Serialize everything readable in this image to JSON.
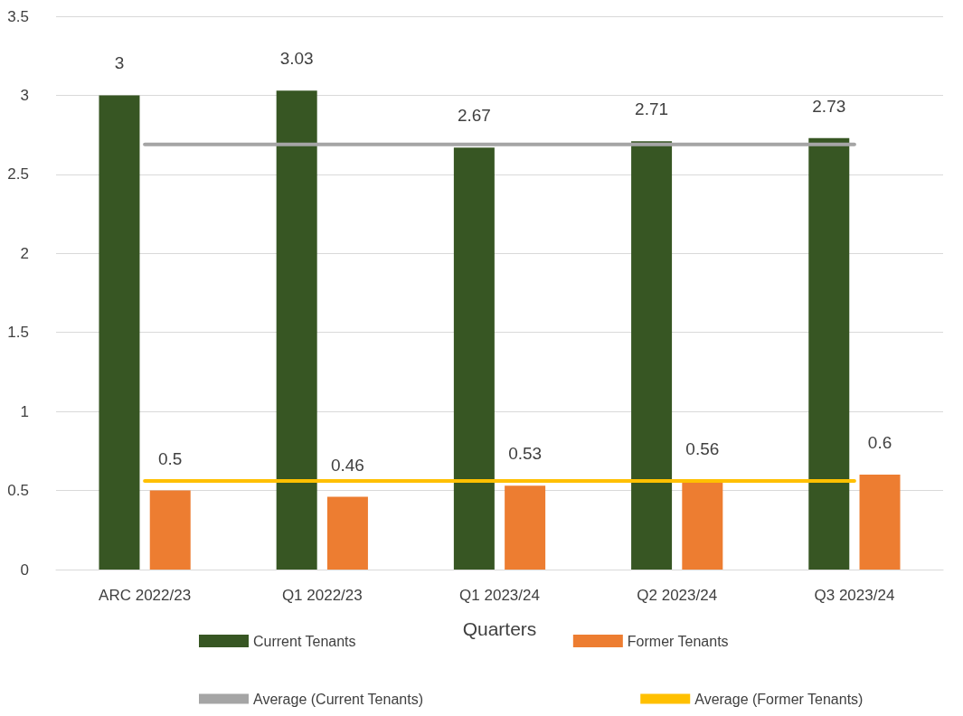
{
  "chart_data": {
    "type": "bar",
    "xlabel": "Quarters",
    "categories": [
      "ARC 2022/23",
      "Q1 2022/23",
      "Q1 2023/24",
      "Q2 2023/24",
      "Q3 2023/24"
    ],
    "series": [
      {
        "name": "Current Tenants",
        "color": "#375623",
        "values": [
          3,
          3.03,
          2.67,
          2.71,
          2.73
        ],
        "value_labels": [
          "3",
          "3.03",
          "2.67",
          "2.71",
          "2.73"
        ]
      },
      {
        "name": "Former Tenants",
        "color": "#ed7d31",
        "values": [
          0.5,
          0.46,
          0.53,
          0.56,
          0.6
        ],
        "value_labels": [
          "0.5",
          "0.46",
          "0.53",
          "0.56",
          "0.6"
        ]
      },
      {
        "name": "Average (Current Tenants)",
        "type": "line",
        "color": "#a5a5a5",
        "values": [
          2.69,
          2.69,
          2.69,
          2.69,
          2.69
        ]
      },
      {
        "name": "Average (Former Tenants)",
        "type": "line",
        "color": "#ffc000",
        "values": [
          0.56,
          0.56,
          0.56,
          0.56,
          0.56
        ]
      }
    ],
    "ylim": [
      0,
      3.5
    ],
    "yticks": [
      0,
      0.5,
      1,
      1.5,
      2,
      2.5,
      3,
      3.5
    ],
    "grid": "y",
    "legend": "bottom",
    "marker": "none",
    "line_style": "solid"
  }
}
